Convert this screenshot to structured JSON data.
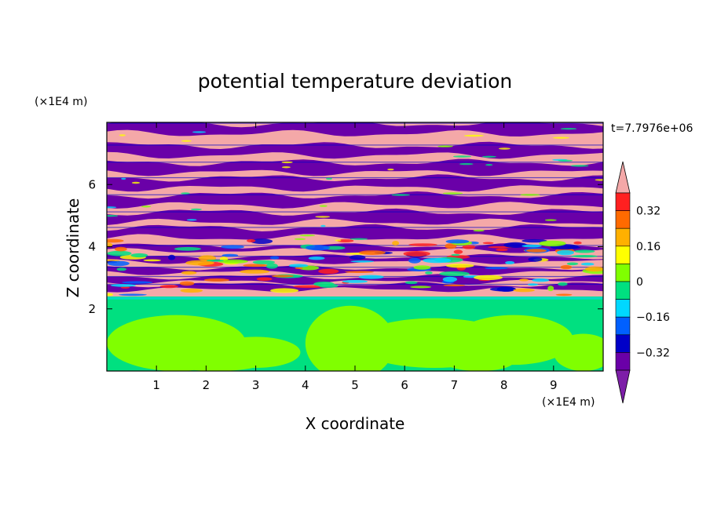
{
  "chart_data": {
    "type": "heatmap",
    "title": "potential temperature deviation",
    "time_label": "t=7.7976e+06",
    "xlabel": "X coordinate",
    "ylabel": "Z coordinate",
    "x_unit": "(×1E4 m)",
    "y_unit": "(×1E4 m)",
    "xlim": [
      0,
      10
    ],
    "ylim": [
      0,
      8
    ],
    "x_ticks": [
      "1",
      "2",
      "3",
      "4",
      "5",
      "6",
      "7",
      "8",
      "9"
    ],
    "y_ticks": [
      "2",
      "4",
      "6"
    ],
    "colorbar": {
      "levels": [
        -0.48,
        -0.4,
        -0.32,
        -0.24,
        -0.16,
        -0.08,
        0,
        0.08,
        0.16,
        0.24,
        0.32,
        0.4,
        0.48
      ],
      "tick_labels": [
        "0.32",
        "0.16",
        "0",
        "−0.16",
        "−0.32"
      ],
      "colors_top_to_bottom": [
        "#f4a8a8",
        "#ff2020",
        "#ff6a00",
        "#ffb000",
        "#ffff00",
        "#80ff00",
        "#00e080",
        "#00d8ff",
        "#0060ff",
        "#0000c8",
        "#6a00a8",
        "#7d1ea8"
      ]
    },
    "layers": [
      {
        "z_range": [
          0,
          2.4
        ],
        "pattern": "green / yellow-green blobs, values near 0 to +0.08"
      },
      {
        "z_range": [
          2.4,
          4.0
        ],
        "pattern": "mixed turbulent layer with all colour levels"
      },
      {
        "z_range": [
          4.0,
          8.0
        ],
        "pattern": "alternating horizontal bands of pink (>0.4) and purple (<-0.4)"
      }
    ]
  }
}
